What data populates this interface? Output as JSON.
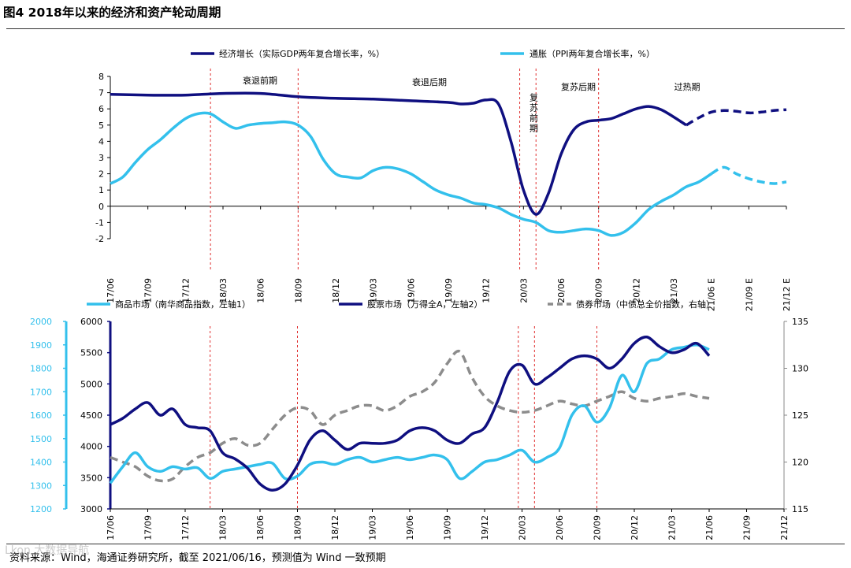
{
  "figure_title": "图4  2018年以来的经济和资产轮动周期",
  "source_note": "资料来源：Wind，海通证券研究所，截至 2021/06/16，预测值为 Wind 一致预期",
  "colors": {
    "dark_navy": "#0f0f80",
    "light_blue": "#33c0ec",
    "gray": "#8c8c8c",
    "phase_red": "#e03030"
  },
  "chart_data": [
    {
      "type": "line",
      "title": "",
      "legend": [
        "经济增长（实际GDP两年复合增长率，%）",
        "通胀（PPI两年复合增长率，%）"
      ],
      "ylim": [
        -2,
        8
      ],
      "yticks": [
        "8",
        "7",
        "6",
        "5",
        "4",
        "3",
        "2",
        "1",
        "0",
        "-1",
        "-2"
      ],
      "x_labels": [
        "17/06",
        "17/09",
        "17/12",
        "18/03",
        "18/06",
        "18/09",
        "18/12",
        "19/03",
        "19/06",
        "19/09",
        "19/12",
        "20/03",
        "20/06",
        "20/09",
        "20/12",
        "21/03",
        "21/06 E",
        "21/09 E",
        "21/12 E"
      ],
      "phases": [
        "衰退前期",
        "衰退后期",
        "复苏前期",
        "复苏后期",
        "过热期"
      ],
      "phase_boundaries_month_index": [
        8,
        15,
        32.7,
        34,
        39
      ],
      "series": [
        {
          "name": "经济增长（实际GDP两年复合增长率，%）",
          "x": [
            0,
            3,
            6,
            9,
            12,
            15,
            18,
            21,
            24,
            27,
            28,
            29,
            30,
            31,
            32,
            33,
            34,
            35,
            36,
            37,
            38,
            39,
            40,
            41,
            42,
            43,
            44,
            45,
            46,
            47,
            48,
            49,
            50,
            51,
            52,
            53,
            54
          ],
          "values": [
            6.9,
            6.85,
            6.85,
            6.95,
            6.95,
            6.75,
            6.65,
            6.6,
            6.5,
            6.4,
            6.3,
            6.35,
            6.55,
            6.3,
            4.0,
            1.0,
            -0.5,
            0.8,
            3.2,
            4.7,
            5.2,
            5.3,
            5.4,
            5.7,
            6.0,
            6.15,
            5.95,
            5.5,
            5.0,
            5.45,
            5.8,
            5.9,
            5.85,
            5.75,
            5.8,
            5.9,
            5.95
          ],
          "forecast_from_x": 46
        },
        {
          "name": "通胀（PPI两年复合增长率，%）",
          "x": [
            0,
            1,
            2,
            3,
            4,
            5,
            6,
            7,
            8,
            9,
            10,
            11,
            12,
            13,
            14,
            15,
            16,
            17,
            18,
            19,
            20,
            21,
            22,
            23,
            24,
            25,
            26,
            27,
            28,
            29,
            30,
            31,
            32,
            33,
            34,
            35,
            36,
            37,
            38,
            39,
            40,
            41,
            42,
            43,
            44,
            45,
            46,
            47,
            48,
            49,
            50,
            51,
            52,
            53,
            54
          ],
          "values": [
            1.4,
            1.8,
            2.7,
            3.5,
            4.1,
            4.8,
            5.4,
            5.7,
            5.7,
            5.2,
            4.8,
            5.0,
            5.1,
            5.15,
            5.2,
            5.0,
            4.3,
            2.9,
            2.0,
            1.8,
            1.75,
            2.2,
            2.4,
            2.3,
            2.0,
            1.5,
            1.0,
            0.7,
            0.5,
            0.2,
            0.1,
            -0.1,
            -0.5,
            -0.8,
            -1.0,
            -1.5,
            -1.6,
            -1.5,
            -1.4,
            -1.5,
            -1.8,
            -1.6,
            -1.0,
            -0.2,
            0.3,
            0.7,
            1.2,
            1.5,
            2.0,
            2.4,
            2.0,
            1.7,
            1.5,
            1.4,
            1.5
          ],
          "forecast_from_x": 48
        }
      ]
    },
    {
      "type": "line",
      "title": "",
      "legend": [
        "商品市场（南华商品指数，左轴1）",
        "股票市场（万得全A，左轴2）",
        "债券市场（中债总全价指数，右轴）"
      ],
      "left_axis_1": {
        "ylim": [
          1200,
          2000
        ],
        "ticks": [
          "2000",
          "1900",
          "1800",
          "1700",
          "1600",
          "1500",
          "1400",
          "1300",
          "1200"
        ]
      },
      "left_axis_2": {
        "ylim": [
          3000,
          6000
        ],
        "ticks": [
          "6000",
          "5500",
          "5000",
          "4500",
          "4000",
          "3500",
          "3000"
        ]
      },
      "right_axis": {
        "ylim": [
          115,
          135
        ],
        "ticks": [
          "135",
          "130",
          "125",
          "120",
          "115"
        ]
      },
      "x_labels": [
        "17/06",
        "17/09",
        "17/12",
        "18/03",
        "18/06",
        "18/09",
        "18/12",
        "19/03",
        "19/06",
        "19/09",
        "19/12",
        "20/03",
        "20/06",
        "20/09",
        "20/12",
        "21/03",
        "21/06",
        "21/09",
        "21/12"
      ],
      "phase_boundaries_month_index": [
        8,
        15,
        32.7,
        34,
        39
      ],
      "series": [
        {
          "name": "商品市场（南华商品指数，左轴1）",
          "axis": "left1",
          "x": [
            0,
            1,
            2,
            3,
            4,
            5,
            6,
            7,
            8,
            9,
            10,
            11,
            12,
            13,
            14,
            15,
            16,
            17,
            18,
            19,
            20,
            21,
            22,
            23,
            24,
            25,
            26,
            27,
            28,
            29,
            30,
            31,
            32,
            33,
            34,
            35,
            36,
            37,
            38,
            39,
            40,
            41,
            42,
            43,
            44,
            45,
            46,
            47,
            48
          ],
          "values": [
            1310,
            1380,
            1440,
            1380,
            1360,
            1380,
            1370,
            1375,
            1330,
            1360,
            1370,
            1380,
            1390,
            1395,
            1330,
            1340,
            1390,
            1400,
            1390,
            1410,
            1420,
            1400,
            1410,
            1420,
            1410,
            1420,
            1430,
            1410,
            1330,
            1360,
            1400,
            1410,
            1430,
            1450,
            1400,
            1420,
            1460,
            1600,
            1640,
            1570,
            1630,
            1770,
            1700,
            1820,
            1840,
            1880,
            1890,
            1900,
            1880
          ]
        },
        {
          "name": "股票市场（万得全A，左轴2）",
          "axis": "left2",
          "x": [
            0,
            1,
            2,
            3,
            4,
            5,
            6,
            7,
            8,
            9,
            10,
            11,
            12,
            13,
            14,
            15,
            16,
            17,
            18,
            19,
            20,
            21,
            22,
            23,
            24,
            25,
            26,
            27,
            28,
            29,
            30,
            31,
            32,
            33,
            34,
            35,
            36,
            37,
            38,
            39,
            40,
            41,
            42,
            43,
            44,
            45,
            46,
            47,
            48
          ],
          "values": [
            4350,
            4450,
            4600,
            4700,
            4500,
            4600,
            4350,
            4300,
            4250,
            3900,
            3800,
            3650,
            3400,
            3300,
            3400,
            3700,
            4100,
            4250,
            4100,
            3950,
            4050,
            4050,
            4050,
            4100,
            4250,
            4300,
            4250,
            4100,
            4050,
            4200,
            4300,
            4700,
            5200,
            5300,
            5000,
            5100,
            5250,
            5400,
            5450,
            5400,
            5250,
            5400,
            5650,
            5750,
            5600,
            5500,
            5550,
            5650,
            5450
          ]
        },
        {
          "name": "债券市场（中债总全价指数，右轴）",
          "axis": "right",
          "x": [
            0,
            1,
            2,
            3,
            4,
            5,
            6,
            7,
            8,
            9,
            10,
            11,
            12,
            13,
            14,
            15,
            16,
            17,
            18,
            19,
            20,
            21,
            22,
            23,
            24,
            25,
            26,
            27,
            28,
            29,
            30,
            31,
            32,
            33,
            34,
            35,
            36,
            37,
            38,
            39,
            40,
            41,
            42,
            43,
            44,
            45,
            46,
            47,
            48
          ],
          "values": [
            120.5,
            120,
            119.5,
            118.5,
            118,
            118.2,
            119.5,
            120.5,
            121,
            122,
            122.5,
            121.8,
            122,
            123.5,
            125,
            125.8,
            125.5,
            124,
            125,
            125.5,
            126,
            126,
            125.5,
            126,
            127,
            127.5,
            128.5,
            130.5,
            131.8,
            129,
            127,
            126,
            125.5,
            125.3,
            125.5,
            126,
            126.5,
            126.2,
            126,
            126.5,
            127,
            127.5,
            126.8,
            126.5,
            126.8,
            127,
            127.3,
            127,
            126.8
          ]
        }
      ]
    }
  ],
  "top_labels": {
    "legend_1": "经济增长（实际GDP两年复合增长率，%）",
    "legend_2": "通胀（PPI两年复合增长率，%）",
    "phase_1": "衰退前期",
    "phase_2": "衰退后期",
    "phase_3": "复苏前期",
    "phase_4": "复苏后期",
    "phase_5": "过热期"
  },
  "bottom_labels": {
    "legend_1": "商品市场（南华商品指数，左轴1）",
    "legend_2": "股票市场（万得全A，左轴2）",
    "legend_3": "债券市场（中债总全价指数，右轴）"
  },
  "watermark": "Lkon 大数据导航"
}
